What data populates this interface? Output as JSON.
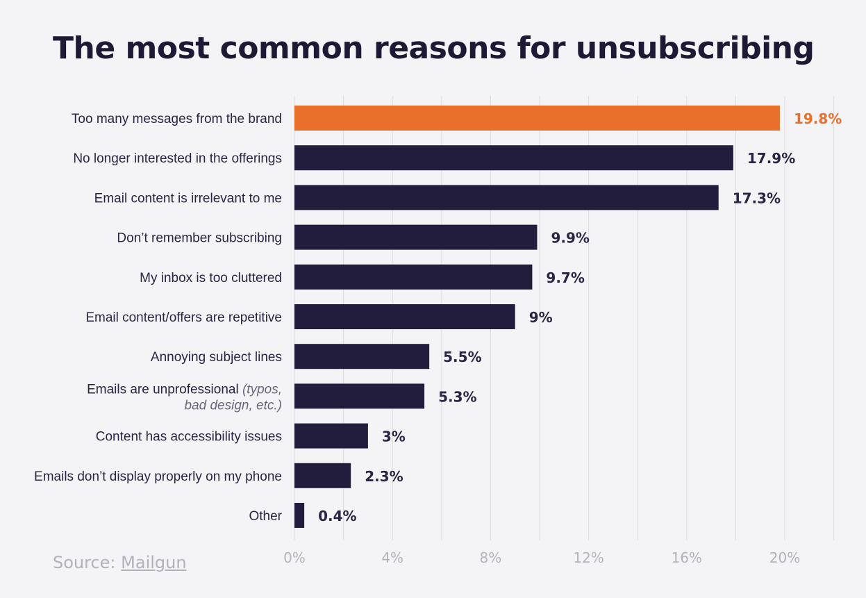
{
  "title": "The most common reasons for unsubscribing",
  "source": {
    "prefix": "Source:",
    "link": "Mailgun"
  },
  "colors": {
    "highlight": "#e8702a",
    "bar": "#221d3d",
    "text": "#2a2545",
    "tick": "#b4b1bd",
    "grid": "#dddbe2"
  },
  "chart_data": {
    "type": "bar",
    "orientation": "horizontal",
    "title": "The most common reasons for unsubscribing",
    "xlabel": "",
    "ylabel": "",
    "xlim": [
      0,
      23
    ],
    "x_ticks": [
      0,
      4,
      8,
      12,
      16,
      20
    ],
    "x_tick_labels": [
      "0%",
      "4%",
      "8%",
      "12%",
      "16%",
      "20%"
    ],
    "grid": "vertical",
    "categories": [
      {
        "label": "Too many messages from the brand",
        "note": ""
      },
      {
        "label": "No longer interested in the offerings",
        "note": ""
      },
      {
        "label": "Email content is irrelevant to me",
        "note": ""
      },
      {
        "label": "Don’t remember subscribing",
        "note": ""
      },
      {
        "label": "My inbox is too cluttered",
        "note": ""
      },
      {
        "label": "Email content/offers are repetitive",
        "note": ""
      },
      {
        "label": "Annoying subject lines",
        "note": ""
      },
      {
        "label": "Emails are unprofessional",
        "note": "(typos,",
        "note2": "bad design, etc.)"
      },
      {
        "label": "Content has accessibility issues",
        "note": ""
      },
      {
        "label": "Emails don’t display properly on my phone",
        "note": ""
      },
      {
        "label": "Other",
        "note": ""
      }
    ],
    "values": [
      19.8,
      17.9,
      17.3,
      9.9,
      9.7,
      9,
      5.5,
      5.3,
      3,
      2.3,
      0.4
    ],
    "value_labels": [
      "19.8%",
      "17.9%",
      "17.3%",
      "9.9%",
      "9.7%",
      "9%",
      "5.5%",
      "5.3%",
      "3%",
      "2.3%",
      "0.4%"
    ],
    "highlight_index": 0
  }
}
